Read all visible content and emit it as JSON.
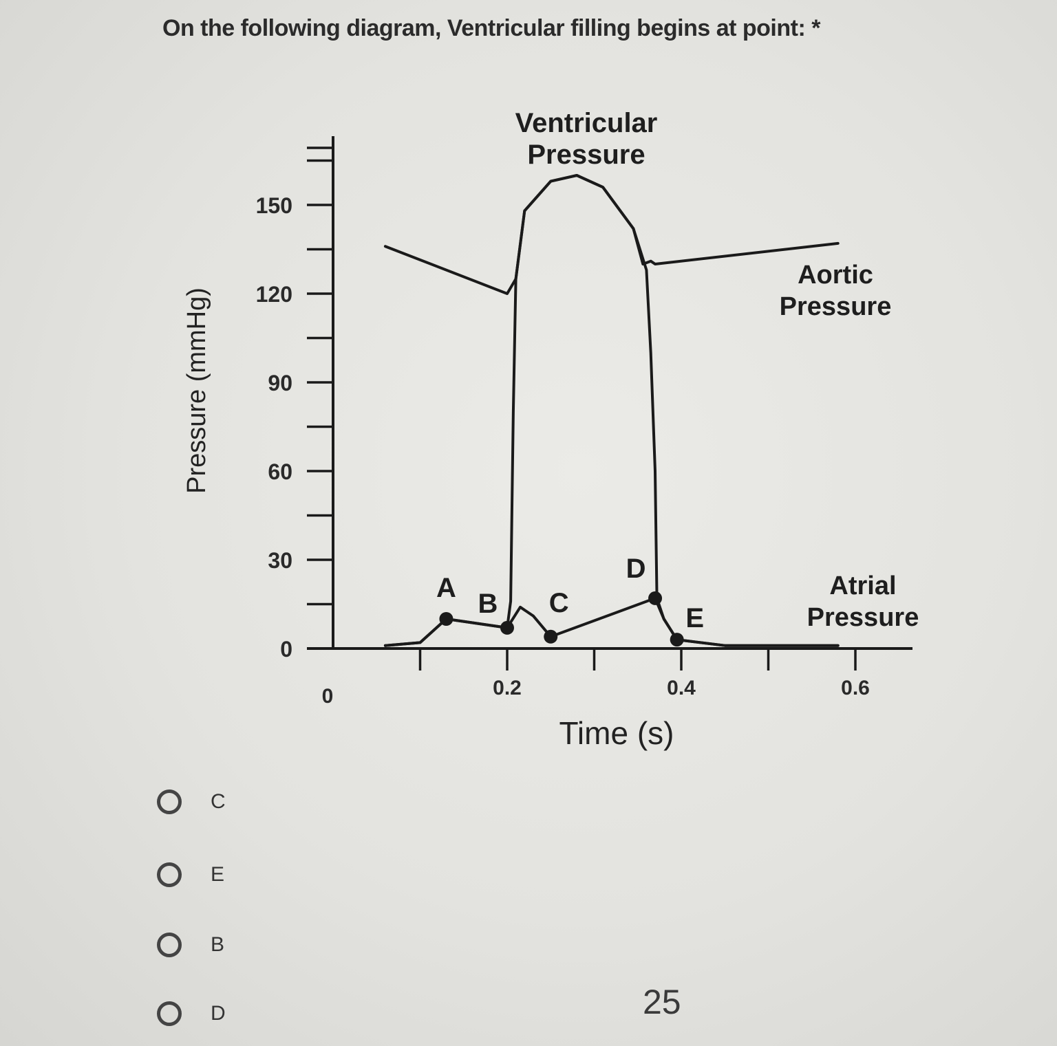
{
  "question": {
    "text": "On the following diagram, Ventricular filling begins at point: *"
  },
  "diagram": {
    "y_axis_label": "Pressure (mmHg)",
    "x_axis_label": "Time (s)",
    "y_ticks": [
      "0",
      "30",
      "60",
      "90",
      "120",
      "150"
    ],
    "x_ticks": [
      "0",
      "0.2",
      "0.4",
      "0.6"
    ],
    "curve_labels": {
      "ventricular": [
        "Ventricular",
        "Pressure"
      ],
      "aortic": [
        "Aortic",
        "Pressure"
      ],
      "atrial": [
        "Atrial",
        "Pressure"
      ]
    },
    "points": [
      {
        "label": "A",
        "t": 0.13,
        "p": 10
      },
      {
        "label": "B",
        "t": 0.2,
        "p": 7
      },
      {
        "label": "C",
        "t": 0.25,
        "p": 4
      },
      {
        "label": "D",
        "t": 0.37,
        "p": 17
      },
      {
        "label": "E",
        "t": 0.395,
        "p": 3
      }
    ],
    "ventricular_pressure": [
      [
        0.06,
        1
      ],
      [
        0.1,
        2
      ],
      [
        0.13,
        10
      ],
      [
        0.2,
        7
      ],
      [
        0.204,
        16
      ],
      [
        0.207,
        80
      ],
      [
        0.21,
        125
      ],
      [
        0.22,
        148
      ],
      [
        0.25,
        158
      ],
      [
        0.28,
        160
      ],
      [
        0.31,
        156
      ],
      [
        0.345,
        142
      ],
      [
        0.36,
        128
      ],
      [
        0.365,
        100
      ],
      [
        0.37,
        60
      ],
      [
        0.372,
        17
      ],
      [
        0.38,
        10
      ],
      [
        0.395,
        3
      ],
      [
        0.45,
        1
      ],
      [
        0.58,
        1
      ]
    ],
    "aortic_pressure": [
      [
        0.06,
        136
      ],
      [
        0.2,
        120
      ],
      [
        0.21,
        125
      ],
      [
        0.22,
        148
      ],
      [
        0.25,
        158
      ],
      [
        0.28,
        160
      ],
      [
        0.31,
        156
      ],
      [
        0.345,
        142
      ],
      [
        0.356,
        130
      ],
      [
        0.365,
        131
      ],
      [
        0.37,
        130
      ],
      [
        0.58,
        137
      ]
    ],
    "atrial_pressure": [
      [
        0.06,
        1
      ],
      [
        0.1,
        2
      ],
      [
        0.13,
        10
      ],
      [
        0.2,
        7
      ],
      [
        0.215,
        14
      ],
      [
        0.23,
        11
      ],
      [
        0.25,
        4
      ],
      [
        0.37,
        17
      ],
      [
        0.38,
        10
      ],
      [
        0.395,
        3
      ],
      [
        0.45,
        1
      ],
      [
        0.58,
        1
      ]
    ]
  },
  "options": [
    {
      "label": "C"
    },
    {
      "label": "E"
    },
    {
      "label": "B"
    },
    {
      "label": "D"
    }
  ],
  "page_number": "25"
}
